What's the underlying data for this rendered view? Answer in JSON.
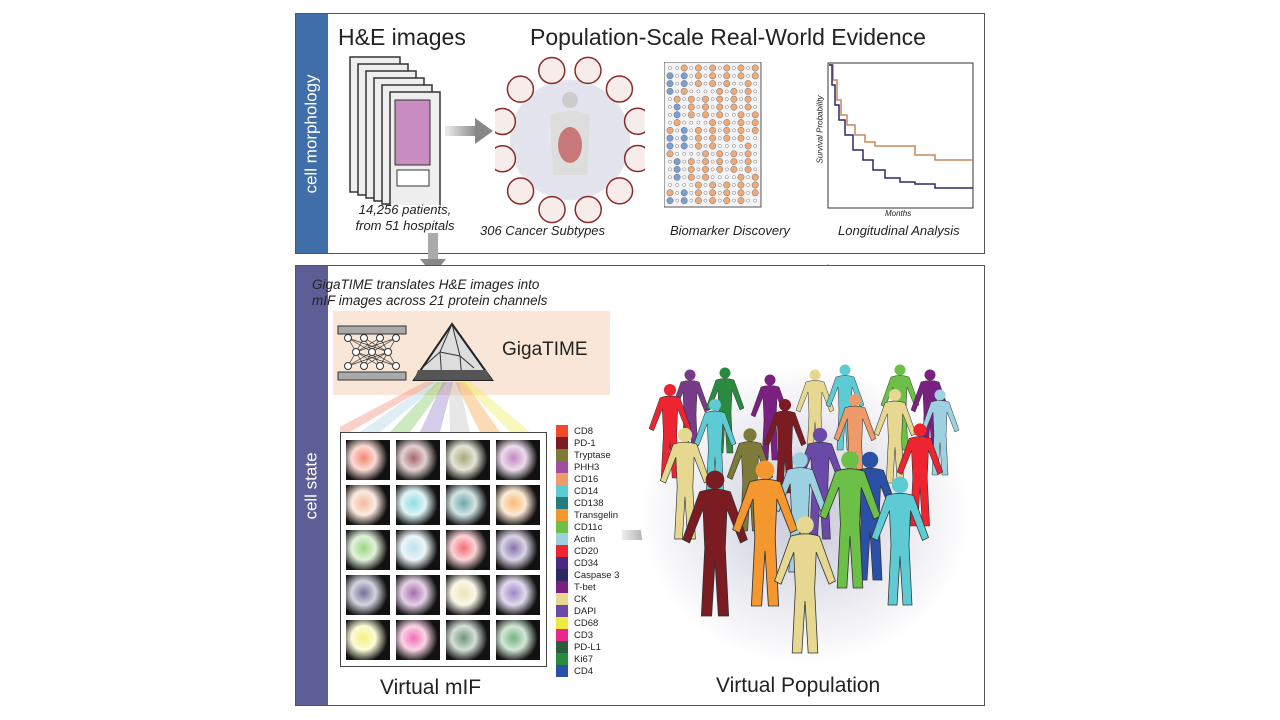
{
  "top_panel": {
    "band_label": "cell morphology",
    "he_title": "H&E images",
    "he_caption_line1": "14,256 patients,",
    "he_caption_line2": "from 51 hospitals",
    "title": "Population-Scale Real-World Evidence",
    "subtype_label": "306 Cancer Subtypes",
    "biomarker_label": "Biomarker Discovery",
    "longitudinal_label": "Longitudinal Analysis",
    "km_ylabel": "Survival Probability",
    "km_xlabel": "Months",
    "km_colors": {
      "high": "#c8895a",
      "low": "#2a2a6a"
    }
  },
  "bottom_panel": {
    "band_label": "cell state",
    "desc_line1": "GigaTIME translates H&E images into",
    "desc_line2": "mIF images across 21 protein channels",
    "model_name": "GigaTIME",
    "mif_label": "Virtual mIF",
    "population_label": "Virtual Population",
    "channels": [
      {
        "name": "CD8",
        "color": "#f04a2a"
      },
      {
        "name": "PD-1",
        "color": "#7a1c22"
      },
      {
        "name": "Tryptase",
        "color": "#7d7a3a"
      },
      {
        "name": "PHH3",
        "color": "#a04fa0"
      },
      {
        "name": "CD16",
        "color": "#ee9a6a"
      },
      {
        "name": "CD14",
        "color": "#5ecad4"
      },
      {
        "name": "CD138",
        "color": "#247c7e"
      },
      {
        "name": "Transgelin",
        "color": "#f3972e"
      },
      {
        "name": "CD11c",
        "color": "#6cc048"
      },
      {
        "name": "Actin",
        "color": "#9dd0e0"
      },
      {
        "name": "CD20",
        "color": "#ee2530"
      },
      {
        "name": "CD34",
        "color": "#4a2a80"
      },
      {
        "name": "Caspase 3",
        "color": "#2a2a60"
      },
      {
        "name": "T-bet",
        "color": "#7a2080"
      },
      {
        "name": "CK",
        "color": "#e6d890"
      },
      {
        "name": "DAPI",
        "color": "#6a4aa8"
      },
      {
        "name": "CD68",
        "color": "#eeea40"
      },
      {
        "name": "CD3",
        "color": "#e8288a"
      },
      {
        "name": "PD-L1",
        "color": "#2a5e3a"
      },
      {
        "name": "Ki67",
        "color": "#2a8a40"
      },
      {
        "name": "CD4",
        "color": "#2a50a8"
      }
    ]
  },
  "colors": {
    "morphology_band": "#3f6ea8",
    "state_band": "#5e5e96",
    "model_box": "#fae6d6"
  }
}
